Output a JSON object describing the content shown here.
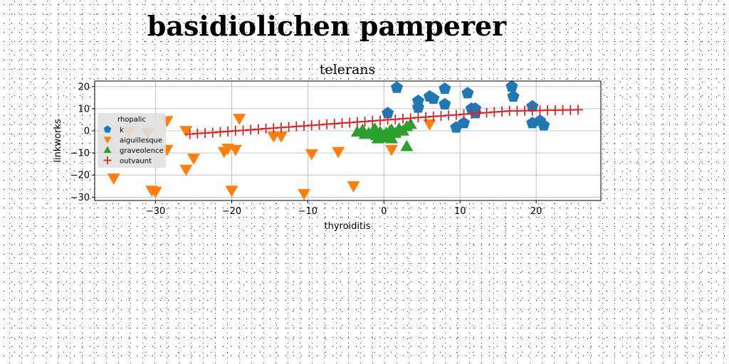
{
  "suptitle": "basidiolichen pamperer",
  "chart_data": {
    "type": "scatter",
    "title": "telerans",
    "xlabel": "thyroiditis",
    "ylabel": "linkworks",
    "xlim": [
      -38,
      28.5
    ],
    "ylim": [
      -31.5,
      22.5
    ],
    "xticks": [
      -30,
      -20,
      -10,
      0,
      10,
      20
    ],
    "yticks": [
      -30,
      -20,
      -10,
      0,
      10,
      20
    ],
    "grid": true,
    "legend": {
      "title": "rhopalic",
      "placement": "center-left",
      "entries": [
        "k",
        "aiguillesque",
        "graveolence",
        "outvaunt"
      ]
    },
    "series": [
      {
        "name": "k",
        "marker": "pentagon",
        "color": "#1f77b4",
        "points": [
          [
            0.5,
            8
          ],
          [
            1.7,
            19.5
          ],
          [
            4.5,
            13.5
          ],
          [
            4.5,
            10.5
          ],
          [
            6,
            15.5
          ],
          [
            6.5,
            14.5
          ],
          [
            8,
            19
          ],
          [
            8,
            12
          ],
          [
            9.5,
            1.5
          ],
          [
            10.5,
            3.5
          ],
          [
            11,
            17
          ],
          [
            11.5,
            10
          ],
          [
            12,
            8
          ],
          [
            12,
            10
          ],
          [
            16.8,
            20
          ],
          [
            17,
            15.5
          ],
          [
            19.5,
            11
          ],
          [
            19.5,
            3.5
          ],
          [
            20.5,
            4.5
          ],
          [
            21,
            2.5
          ]
        ]
      },
      {
        "name": "aiguillesque",
        "marker": "triangle-down",
        "color": "#ff7f0e",
        "points": [
          [
            -35.5,
            -21.5
          ],
          [
            -33.5,
            -0.5
          ],
          [
            -31,
            -1
          ],
          [
            -30.5,
            -27
          ],
          [
            -30,
            -27.5
          ],
          [
            -28.5,
            4.5
          ],
          [
            -28.5,
            -8.5
          ],
          [
            -26,
            0
          ],
          [
            -26,
            -17.5
          ],
          [
            -25,
            -12.5
          ],
          [
            -21,
            -9.5
          ],
          [
            -20.5,
            -8
          ],
          [
            -20,
            -27
          ],
          [
            -19.5,
            -8.5
          ],
          [
            -19,
            5.5
          ],
          [
            -14.5,
            -2.5
          ],
          [
            -13.5,
            -2.5
          ],
          [
            -10.5,
            -28.5
          ],
          [
            -9.5,
            -10.5
          ],
          [
            -6,
            -9.5
          ],
          [
            -4,
            -25
          ],
          [
            1,
            -8.5
          ],
          [
            6,
            3
          ]
        ]
      },
      {
        "name": "graveolence",
        "marker": "triangle-up",
        "color": "#2ca02c",
        "points": [
          [
            -3.5,
            -0.5
          ],
          [
            -2.8,
            0.5
          ],
          [
            -2.5,
            -1.5
          ],
          [
            -2,
            -1
          ],
          [
            -1.5,
            -0.5
          ],
          [
            -1.2,
            1
          ],
          [
            -1,
            -2
          ],
          [
            -0.5,
            -0.5
          ],
          [
            -0.3,
            -3
          ],
          [
            0,
            -2
          ],
          [
            0.3,
            -1
          ],
          [
            0.6,
            -2.5
          ],
          [
            1,
            0.5
          ],
          [
            1,
            -3.5
          ],
          [
            1.5,
            -1
          ],
          [
            2,
            1
          ],
          [
            2.5,
            0
          ],
          [
            3,
            -7
          ],
          [
            3,
            2
          ],
          [
            3.5,
            3
          ],
          [
            -0.8,
            -3.5
          ],
          [
            0.8,
            0
          ]
        ]
      },
      {
        "name": "outvaunt",
        "marker": "plus",
        "color": "#d62728",
        "x": [
          -25.5,
          -24.5,
          -23.5,
          -22.5,
          -21.5,
          -20.5,
          -19.5,
          -18.5,
          -17.5,
          -16.5,
          -15.5,
          -14.5,
          -13.5,
          -12.5,
          -11.5,
          -10.5,
          -9.5,
          -8.5,
          -7.5,
          -6.5,
          -5.5,
          -4.5,
          -3.5,
          -2.5,
          -1.5,
          -0.5,
          0.5,
          1.5,
          2.5,
          3.5,
          4.5,
          5.5,
          6.5,
          7.5,
          8.5,
          9.5,
          10.5,
          11.5,
          12.5,
          13.5,
          14.5,
          15.5,
          16.5,
          17.5,
          18.5,
          19.5,
          20.5,
          21.5,
          22.5,
          23.5,
          24.5,
          25.5
        ],
        "y": [
          -1.5,
          -1.2,
          -1.0,
          -0.8,
          -0.5,
          -0.3,
          0.0,
          0.2,
          0.5,
          0.7,
          1.0,
          1.2,
          1.5,
          1.7,
          2.0,
          2.2,
          2.5,
          2.7,
          3.0,
          3.2,
          3.5,
          3.7,
          4.0,
          4.2,
          4.5,
          4.7,
          5.0,
          5.2,
          5.5,
          5.7,
          6.0,
          6.2,
          6.5,
          6.7,
          7.0,
          7.2,
          7.5,
          7.7,
          8.0,
          8.2,
          8.5,
          8.7,
          9.0,
          9.0,
          9.1,
          9.1,
          9.2,
          9.3,
          9.3,
          9.4,
          9.4,
          9.5
        ]
      }
    ]
  }
}
